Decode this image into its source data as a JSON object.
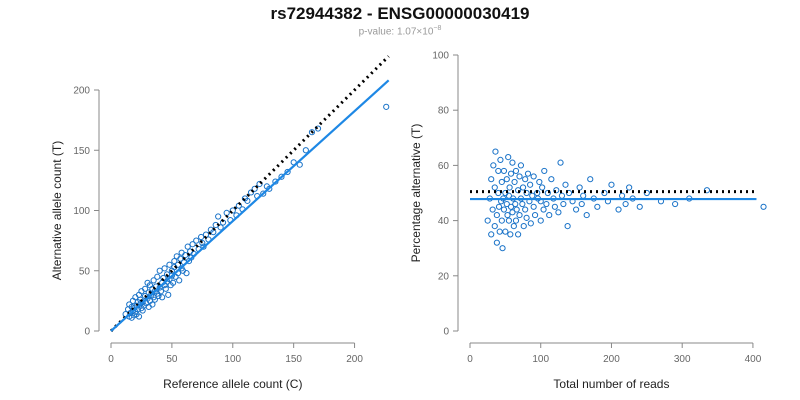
{
  "figure": {
    "title": "rs72944382 - ENSG00000030419",
    "subtitle_prefix": "p-value: 1.07×10",
    "subtitle_exponent": "−8"
  },
  "colors": {
    "points": "#1a73c8",
    "fit": "#1e88e5",
    "reference": "#000000"
  },
  "chart_data": [
    {
      "type": "scatter",
      "xlabel": "Reference allele count (C)",
      "ylabel": "Alternative allele count (T)",
      "xlim": [
        0,
        225
      ],
      "ylim": [
        0,
        200
      ],
      "xticks": [
        0,
        50,
        100,
        150,
        200
      ],
      "yticks": [
        0,
        50,
        100,
        150,
        200
      ],
      "grid": false,
      "legend": "none",
      "fit_line": {
        "style": "solid",
        "from": [
          0,
          0
        ],
        "to": [
          228,
          208
        ]
      },
      "reference_line": {
        "style": "dotted",
        "from": [
          0,
          0
        ],
        "to": [
          228,
          228
        ]
      },
      "series": [
        {
          "x": [
            12,
            14,
            15,
            15,
            16,
            17,
            17,
            18,
            18,
            19,
            19,
            20,
            20,
            21,
            21,
            22,
            22,
            23,
            23,
            24,
            24,
            25,
            25,
            26,
            26,
            27,
            28,
            28,
            29,
            30,
            30,
            31,
            31,
            32,
            32,
            33,
            34,
            34,
            35,
            35,
            36,
            36,
            37,
            38,
            38,
            39,
            40,
            40,
            41,
            42,
            42,
            43,
            44,
            44,
            45,
            46,
            46,
            47,
            48,
            48,
            49,
            50,
            50,
            51,
            52,
            52,
            53,
            54,
            55,
            55,
            56,
            57,
            58,
            58,
            59,
            60,
            61,
            62,
            63,
            64,
            65,
            66,
            67,
            68,
            70,
            72,
            74,
            75,
            76,
            78,
            80,
            82,
            84,
            86,
            88,
            90,
            92,
            95,
            98,
            100,
            103,
            105,
            108,
            110,
            112,
            115,
            118,
            120,
            122,
            125,
            128,
            130,
            135,
            140,
            145,
            150,
            155,
            160,
            165,
            170,
            226
          ],
          "y": [
            14,
            18,
            12,
            22,
            15,
            20,
            11,
            17,
            25,
            13,
            19,
            16,
            28,
            21,
            14,
            24,
            18,
            30,
            12,
            22,
            26,
            19,
            33,
            17,
            24,
            21,
            29,
            35,
            23,
            27,
            40,
            20,
            32,
            25,
            38,
            30,
            22,
            35,
            28,
            42,
            33,
            26,
            37,
            31,
            45,
            29,
            36,
            50,
            33,
            40,
            28,
            44,
            38,
            52,
            35,
            47,
            41,
            30,
            55,
            43,
            38,
            50,
            46,
            40,
            58,
            53,
            45,
            62,
            48,
            55,
            42,
            60,
            52,
            65,
            50,
            57,
            63,
            48,
            70,
            58,
            66,
            61,
            72,
            64,
            75,
            68,
            78,
            73,
            70,
            80,
            76,
            84,
            82,
            88,
            95,
            86,
            90,
            98,
            92,
            100,
            96,
            104,
            101,
            110,
            108,
            115,
            118,
            112,
            122,
            114,
            120,
            118,
            124,
            128,
            132,
            140,
            138,
            150,
            165,
            168,
            186
          ]
        }
      ]
    },
    {
      "type": "scatter",
      "xlabel": "Total number of reads",
      "ylabel": "Percentage alternative (T)",
      "xlim": [
        0,
        410
      ],
      "ylim": [
        0,
        100
      ],
      "xticks": [
        0,
        100,
        200,
        300,
        400
      ],
      "yticks": [
        0,
        20,
        40,
        60,
        80,
        100
      ],
      "grid": false,
      "legend": "none",
      "fit_line": {
        "style": "solid",
        "y": 47.8
      },
      "reference_line": {
        "style": "dotted",
        "y": 50.5
      },
      "series": [
        {
          "x": [
            25,
            28,
            30,
            30,
            32,
            33,
            35,
            35,
            36,
            38,
            38,
            40,
            40,
            41,
            42,
            43,
            44,
            45,
            45,
            46,
            47,
            48,
            48,
            50,
            50,
            52,
            52,
            53,
            54,
            55,
            55,
            56,
            57,
            58,
            58,
            60,
            60,
            61,
            62,
            63,
            64,
            65,
            65,
            66,
            68,
            68,
            70,
            70,
            72,
            72,
            74,
            75,
            76,
            78,
            78,
            80,
            80,
            82,
            84,
            85,
            86,
            88,
            90,
            90,
            92,
            95,
            96,
            98,
            100,
            100,
            102,
            104,
            105,
            108,
            110,
            112,
            115,
            118,
            120,
            122,
            125,
            128,
            130,
            132,
            135,
            138,
            140,
            145,
            150,
            155,
            158,
            160,
            165,
            170,
            175,
            180,
            190,
            195,
            200,
            210,
            215,
            220,
            225,
            230,
            240,
            250,
            270,
            290,
            310,
            335,
            415
          ],
          "y": [
            40,
            48,
            55,
            35,
            44,
            60,
            38,
            52,
            65,
            42,
            32,
            50,
            58,
            45,
            36,
            62,
            47,
            40,
            54,
            30,
            48,
            44,
            58,
            50,
            36,
            46,
            55,
            42,
            63,
            40,
            49,
            52,
            35,
            57,
            45,
            43,
            61,
            48,
            38,
            54,
            46,
            40,
            58,
            44,
            51,
            35,
            56,
            42,
            48,
            60,
            46,
            52,
            38,
            55,
            44,
            50,
            41,
            57,
            47,
            53,
            39,
            49,
            45,
            56,
            42,
            50,
            48,
            54,
            40,
            47,
            52,
            44,
            58,
            46,
            50,
            42,
            55,
            48,
            45,
            51,
            43,
            61,
            49,
            46,
            53,
            38,
            50,
            47,
            44,
            52,
            46,
            49,
            42,
            55,
            48,
            45,
            50,
            47,
            53,
            44,
            49,
            46,
            52,
            48,
            45,
            50,
            47,
            46,
            48,
            51,
            45
          ]
        }
      ]
    }
  ]
}
